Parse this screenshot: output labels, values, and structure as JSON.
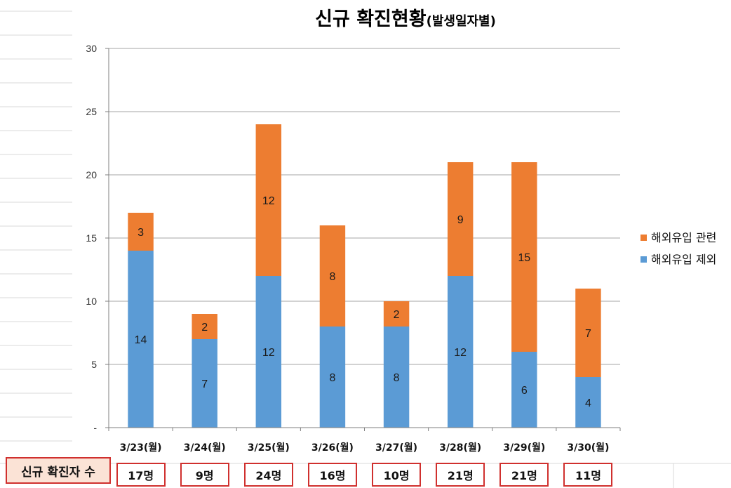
{
  "chart_data": {
    "type": "bar",
    "stacked": true,
    "title": "신규 확진현황",
    "subtitle": "(발생일자별)",
    "categories": [
      "3/23(월)",
      "3/24(월)",
      "3/25(월)",
      "3/26(월)",
      "3/27(월)",
      "3/28(월)",
      "3/29(월)",
      "3/30(월)"
    ],
    "series": [
      {
        "name": "해외유입 제외",
        "values": [
          14,
          7,
          12,
          8,
          8,
          12,
          6,
          4
        ],
        "color": "#5b9bd5"
      },
      {
        "name": "해외유입 관련",
        "values": [
          3,
          2,
          12,
          8,
          2,
          9,
          15,
          7
        ],
        "color": "#ed7d31"
      }
    ],
    "ylim": [
      0,
      30
    ],
    "yticks": [
      "-",
      "5",
      "10",
      "15",
      "20",
      "25",
      "30"
    ],
    "xlabel": "",
    "ylabel": "",
    "grid": true,
    "legend_position": "right",
    "legend_order": [
      "해외유입 관련",
      "해외유입 제외"
    ]
  },
  "footer": {
    "label": "신규 확진자 수",
    "totals": [
      "17명",
      "9명",
      "24명",
      "16명",
      "10명",
      "21명",
      "21명",
      "11명"
    ]
  }
}
